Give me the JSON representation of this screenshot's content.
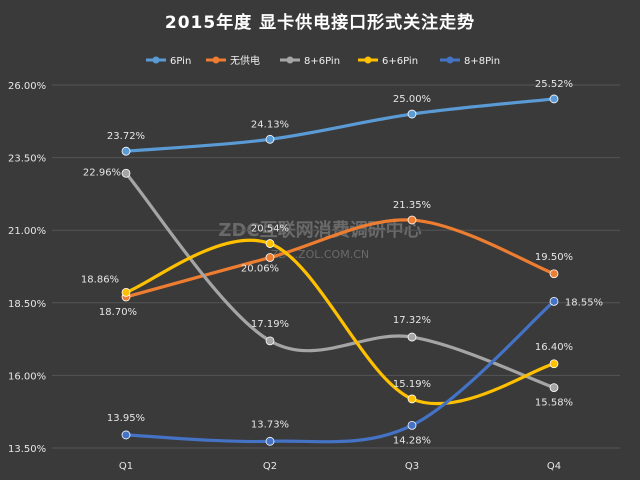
{
  "chart_data": {
    "type": "line",
    "title": "2015年度 显卡供电接口形式关注走势",
    "categories": [
      "Q1",
      "Q2",
      "Q3",
      "Q4"
    ],
    "ylim": [
      13.5,
      26.0
    ],
    "yticks": [
      "13.50%",
      "16.00%",
      "18.50%",
      "21.00%",
      "23.50%",
      "26.00%"
    ],
    "ytick_values": [
      13.5,
      16.0,
      18.5,
      21.0,
      23.5,
      26.0
    ],
    "grid": true,
    "legend_position": "top",
    "series": [
      {
        "name": "6Pin",
        "color": "#5b9bd5",
        "values": [
          23.72,
          24.13,
          25.0,
          25.52
        ],
        "labels": [
          "23.72%",
          "24.13%",
          "25.00%",
          "25.52%"
        ]
      },
      {
        "name": "无供电",
        "color": "#ed7d31",
        "values": [
          18.7,
          20.06,
          21.35,
          19.5
        ],
        "labels": [
          "18.70%",
          "20.06%",
          "21.35%",
          "19.50%"
        ]
      },
      {
        "name": "8+6Pin",
        "color": "#a5a5a5",
        "values": [
          22.96,
          17.19,
          17.32,
          15.58
        ],
        "labels": [
          "22.96%",
          "17.19%",
          "17.32%",
          "15.58%"
        ]
      },
      {
        "name": "6+6Pin",
        "color": "#ffc000",
        "values": [
          18.86,
          20.54,
          15.19,
          16.4
        ],
        "labels": [
          "18.86%",
          "20.54%",
          "15.19%",
          "16.40%"
        ]
      },
      {
        "name": "8+8Pin",
        "color": "#4472c4",
        "values": [
          13.95,
          13.73,
          14.28,
          18.55
        ],
        "labels": [
          "13.95%",
          "13.73%",
          "14.28%",
          "18.55%"
        ]
      }
    ]
  },
  "watermark": {
    "line1": "ZDC互联网消费调研中心",
    "line2": "ZDC.ZOL.COM.CN"
  }
}
